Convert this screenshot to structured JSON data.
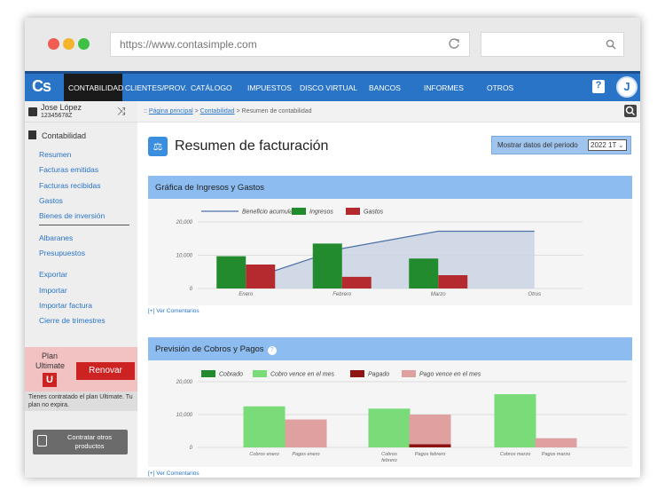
{
  "browser": {
    "url": "https://www.contasimple.com"
  },
  "logo": "Cs",
  "nav": {
    "items": [
      "CONTABILIDAD",
      "CLIENTES/PROV.",
      "CATÁLOGO",
      "IMPUESTOS",
      "DISCO VIRTUAL",
      "BANCOS",
      "INFORMES",
      "OTROS"
    ],
    "help": "?",
    "avatar": "J"
  },
  "user": {
    "name": "Jose López",
    "id": "12345678Z"
  },
  "sidebar": {
    "section": "Contabilidad",
    "links": [
      "Resumen",
      "Facturas emitidas",
      "Facturas recibidas",
      "Gastos",
      "Bienes de inversión",
      "Albaranes",
      "Presupuestos",
      "Exportar",
      "Importar",
      "Importar factura",
      "Cierre de trimestres"
    ],
    "plan_label": "Plan Ultimate",
    "plan_badge": "U",
    "renew": "Renovar",
    "plan_note": "Tienes contratado el plan Ultimate. Tu plan no expira.",
    "contract": "Contratar otros productos"
  },
  "breadcrumb": {
    "prefix": ":: ",
    "home": "Página principal",
    "section": "Contabilidad",
    "current": "Resumen de contabilidad"
  },
  "page": {
    "title": "Resumen de facturación",
    "period_label": "Mostrar datos del periodo",
    "period_value": "2022 1T"
  },
  "panels": {
    "income_title": "Gráfica de Ingresos y Gastos",
    "collections_title": "Previsión de Cobros y Pagos",
    "comments": "[+] Ver Comentarios"
  },
  "colors": {
    "income": "#228b2e",
    "expense": "#b42a2e",
    "collected": "#228b2e",
    "due_collect": "#79dc79",
    "paid": "#8e1414",
    "due_pay": "#dfa0a0",
    "accent": "#2a74c8"
  },
  "chart_data": [
    {
      "type": "bar",
      "categories": [
        "Enero",
        "Febrero",
        "Marzo",
        "Otros"
      ],
      "series": [
        {
          "name": "Beneficio acumulado",
          "kind": "area-line",
          "values": [
            2500,
            12000,
            17200,
            17200
          ]
        },
        {
          "name": "Ingresos",
          "values": [
            9700,
            13500,
            9000,
            0
          ]
        },
        {
          "name": "Gastos",
          "values": [
            7200,
            3500,
            4000,
            0
          ]
        }
      ],
      "yticks": [
        0,
        10000,
        20000
      ],
      "ylim": [
        0,
        20000
      ]
    },
    {
      "type": "bar",
      "groups": [
        "Cobros enero",
        "Pagos enero",
        "Cobros febrero",
        "Pagos febrero",
        "Cobros marzo",
        "Pagos marzo"
      ],
      "series": [
        {
          "name": "Cobrado",
          "values": [
            0,
            0,
            0,
            0,
            0,
            0
          ]
        },
        {
          "name": "Cobro vence en el mes",
          "values": [
            12500,
            0,
            11800,
            0,
            16200,
            0
          ]
        },
        {
          "name": "Pagado",
          "values": [
            0,
            0,
            0,
            1000,
            0,
            0
          ]
        },
        {
          "name": "Pago vence en el mes",
          "values": [
            0,
            8500,
            0,
            9000,
            0,
            2800
          ]
        }
      ],
      "yticks": [
        0,
        10000,
        20000
      ],
      "ylim": [
        0,
        20000
      ]
    }
  ]
}
